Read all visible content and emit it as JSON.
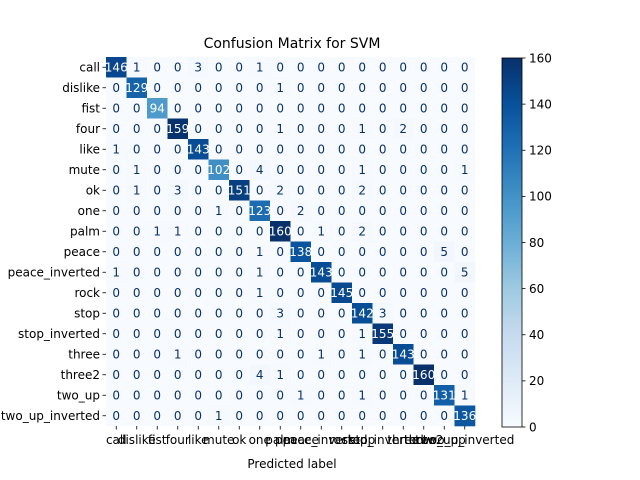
{
  "chart_data": {
    "type": "heatmap",
    "title": "Confusion Matrix for SVM",
    "xlabel": "Predicted label",
    "ylabel": "",
    "labels": [
      "call",
      "dislike",
      "fist",
      "four",
      "like",
      "mute",
      "ok",
      "one",
      "palm",
      "peace",
      "peace_inverted",
      "rock",
      "stop",
      "stop_inverted",
      "three",
      "three2",
      "two_up",
      "two_up_inverted"
    ],
    "values": [
      [
        146,
        1,
        0,
        0,
        3,
        0,
        0,
        1,
        0,
        0,
        0,
        0,
        0,
        0,
        0,
        0,
        0,
        0
      ],
      [
        0,
        129,
        0,
        0,
        0,
        0,
        0,
        0,
        1,
        0,
        0,
        0,
        0,
        0,
        0,
        0,
        0,
        0
      ],
      [
        0,
        0,
        94,
        0,
        0,
        0,
        0,
        0,
        0,
        0,
        0,
        0,
        0,
        0,
        0,
        0,
        0,
        0
      ],
      [
        0,
        0,
        0,
        159,
        0,
        0,
        0,
        0,
        1,
        0,
        0,
        0,
        1,
        0,
        2,
        0,
        0,
        0
      ],
      [
        1,
        0,
        0,
        0,
        143,
        0,
        0,
        0,
        0,
        0,
        0,
        0,
        0,
        0,
        0,
        0,
        0,
        0
      ],
      [
        0,
        1,
        0,
        0,
        0,
        102,
        0,
        4,
        0,
        0,
        0,
        0,
        1,
        0,
        0,
        0,
        0,
        1
      ],
      [
        0,
        1,
        0,
        3,
        0,
        0,
        151,
        0,
        2,
        0,
        0,
        0,
        2,
        0,
        0,
        0,
        0,
        0
      ],
      [
        0,
        0,
        0,
        0,
        0,
        1,
        0,
        123,
        0,
        2,
        0,
        0,
        0,
        0,
        0,
        0,
        0,
        0
      ],
      [
        0,
        0,
        1,
        1,
        0,
        0,
        0,
        0,
        160,
        0,
        1,
        0,
        2,
        0,
        0,
        0,
        0,
        0
      ],
      [
        0,
        0,
        0,
        0,
        0,
        0,
        0,
        1,
        0,
        138,
        0,
        0,
        0,
        0,
        0,
        0,
        5,
        0
      ],
      [
        1,
        0,
        0,
        0,
        0,
        0,
        0,
        1,
        0,
        0,
        143,
        0,
        0,
        0,
        0,
        0,
        0,
        5
      ],
      [
        0,
        0,
        0,
        0,
        0,
        0,
        0,
        1,
        0,
        0,
        0,
        145,
        0,
        0,
        0,
        0,
        0,
        0
      ],
      [
        0,
        0,
        0,
        0,
        0,
        0,
        0,
        0,
        3,
        0,
        0,
        0,
        142,
        3,
        0,
        0,
        0,
        0
      ],
      [
        0,
        0,
        0,
        0,
        0,
        0,
        0,
        0,
        1,
        0,
        0,
        0,
        1,
        155,
        0,
        0,
        0,
        0
      ],
      [
        0,
        0,
        0,
        1,
        0,
        0,
        0,
        0,
        0,
        0,
        1,
        0,
        1,
        0,
        143,
        0,
        0,
        0
      ],
      [
        0,
        0,
        0,
        0,
        0,
        0,
        0,
        4,
        1,
        0,
        0,
        0,
        0,
        0,
        0,
        160,
        0,
        0
      ],
      [
        0,
        0,
        0,
        0,
        0,
        0,
        0,
        0,
        0,
        1,
        0,
        0,
        1,
        0,
        0,
        0,
        131,
        1
      ],
      [
        0,
        0,
        0,
        0,
        0,
        1,
        0,
        0,
        0,
        0,
        0,
        0,
        0,
        0,
        0,
        0,
        0,
        136
      ]
    ],
    "colorbar": {
      "range": [
        0,
        160
      ],
      "ticks": [
        0,
        20,
        40,
        60,
        80,
        100,
        120,
        140,
        160
      ]
    },
    "colormap": [
      "#f7fbff",
      "#deebf7",
      "#c6dbef",
      "#9ecae1",
      "#6baed6",
      "#4292c6",
      "#2171b5",
      "#08519c",
      "#08306b"
    ],
    "grid": false
  }
}
